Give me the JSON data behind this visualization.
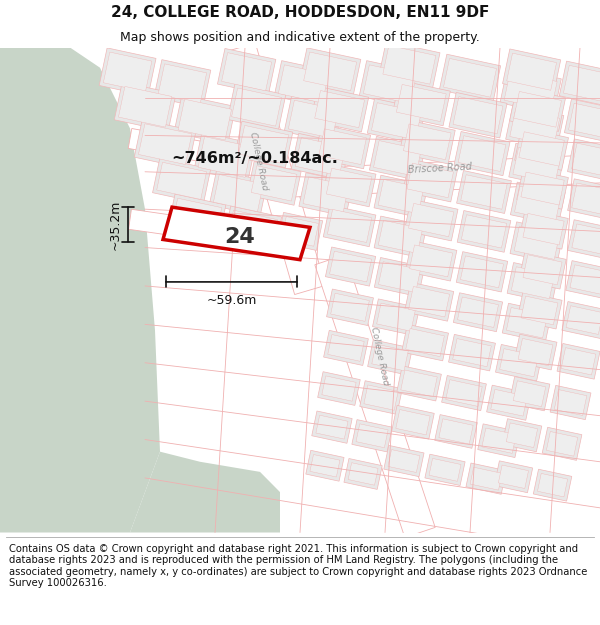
{
  "title": "24, COLLEGE ROAD, HODDESDON, EN11 9DF",
  "subtitle": "Map shows position and indicative extent of the property.",
  "footer": "Contains OS data © Crown copyright and database right 2021. This information is subject to Crown copyright and database rights 2023 and is reproduced with the permission of HM Land Registry. The polygons (including the associated geometry, namely x, y co-ordinates) are subject to Crown copyright and database rights 2023 Ordnance Survey 100026316.",
  "area_label": "~746m²/~0.184ac.",
  "width_label": "~59.6m",
  "height_label": "~35.2m",
  "plot_number": "24",
  "map_bg": "#f7f6f3",
  "green_color": "#c8d5c8",
  "building_fill": "#e8e8e8",
  "building_edge": "#f0b8b8",
  "road_line": "#f0b0b0",
  "road_fill": "#ffffff",
  "highlight_color": "#cc0000",
  "title_fontsize": 11,
  "subtitle_fontsize": 9,
  "footer_fontsize": 7.2,
  "figsize": [
    6.0,
    6.25
  ],
  "dpi": 100
}
